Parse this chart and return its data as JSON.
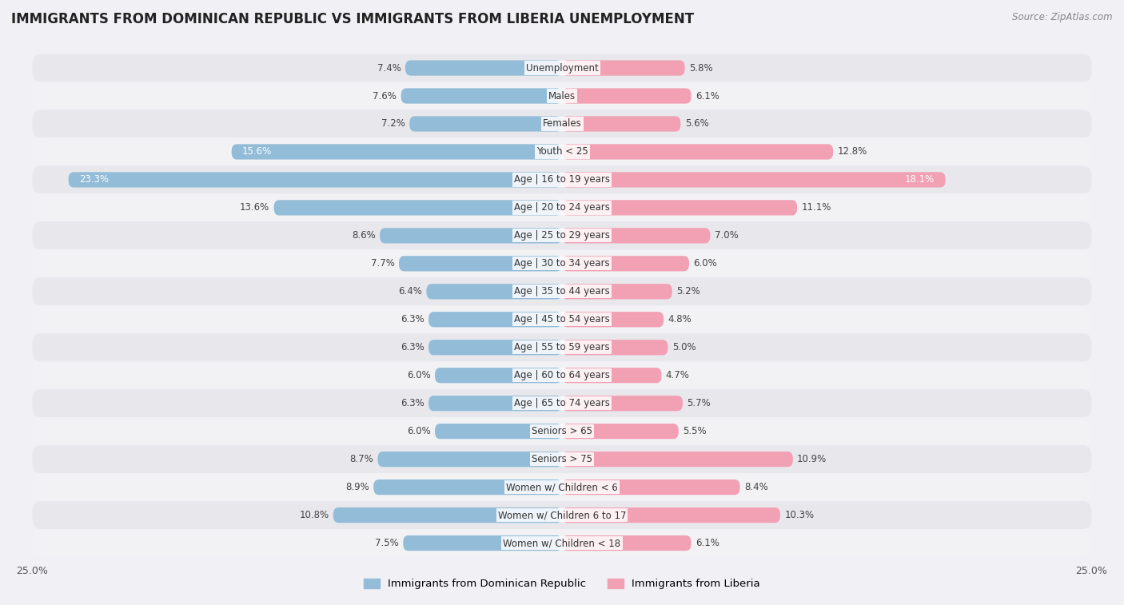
{
  "title": "IMMIGRANTS FROM DOMINICAN REPUBLIC VS IMMIGRANTS FROM LIBERIA UNEMPLOYMENT",
  "source": "Source: ZipAtlas.com",
  "categories": [
    "Unemployment",
    "Males",
    "Females",
    "Youth < 25",
    "Age | 16 to 19 years",
    "Age | 20 to 24 years",
    "Age | 25 to 29 years",
    "Age | 30 to 34 years",
    "Age | 35 to 44 years",
    "Age | 45 to 54 years",
    "Age | 55 to 59 years",
    "Age | 60 to 64 years",
    "Age | 65 to 74 years",
    "Seniors > 65",
    "Seniors > 75",
    "Women w/ Children < 6",
    "Women w/ Children 6 to 17",
    "Women w/ Children < 18"
  ],
  "left_values": [
    7.4,
    7.6,
    7.2,
    15.6,
    23.3,
    13.6,
    8.6,
    7.7,
    6.4,
    6.3,
    6.3,
    6.0,
    6.3,
    6.0,
    8.7,
    8.9,
    10.8,
    7.5
  ],
  "right_values": [
    5.8,
    6.1,
    5.6,
    12.8,
    18.1,
    11.1,
    7.0,
    6.0,
    5.2,
    4.8,
    5.0,
    4.7,
    5.7,
    5.5,
    10.9,
    8.4,
    10.3,
    6.1
  ],
  "left_color": "#92bcd8",
  "right_color": "#f2a0b4",
  "left_label": "Immigrants from Dominican Republic",
  "right_label": "Immigrants from Liberia",
  "xlim": 25.0,
  "row_color_odd": "#e8e8ec",
  "row_color_even": "#f2f2f5",
  "bar_bg_color": "#ffffff",
  "title_fontsize": 12,
  "source_fontsize": 8.5,
  "label_fontsize": 8.5,
  "value_fontsize": 8.5,
  "legend_fontsize": 9.5
}
